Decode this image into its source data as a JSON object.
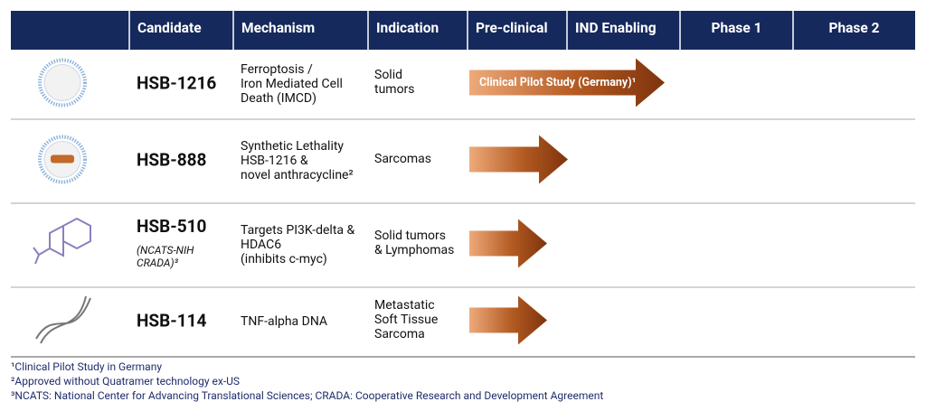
{
  "header": [
    "Candidate",
    "Mechanism",
    "Indication",
    "Pre-clinical",
    "IND Enabling",
    "Phase 1",
    "Phase 2"
  ],
  "rows": [
    {
      "candidate": "HSB-1216",
      "mechanism": [
        "Ferroptosis /",
        "Iron Mediated Cell",
        "Death (IMCD)"
      ],
      "indication": [
        "Solid",
        "tumors"
      ],
      "arrow_label": "Clinical Pilot Study (Germany)¹"
    },
    {
      "candidate": "HSB-888",
      "mechanism": [
        "Synthetic Lethality",
        "HSB-1216 &",
        "novel anthracycline²"
      ],
      "indication": [
        "Sarcomas"
      ]
    },
    {
      "candidate": "HSB-510",
      "note": [
        "(NCATS-NIH",
        "CRADA)³"
      ],
      "mechanism": [
        "Targets PI3K-delta &",
        "HDAC6",
        "(inhibits c-myc)"
      ],
      "indication": [
        "Solid tumors",
        "& Lymphomas"
      ]
    },
    {
      "candidate": "HSB-114",
      "mechanism": [
        "TNF-alpha DNA"
      ],
      "indication": [
        "Metastatic",
        "Soft Tissue",
        "Sarcoma"
      ]
    }
  ],
  "footnotes": [
    "¹Clinical Pilot Study in Germany",
    "²Approved without Quatramer technology ex-US",
    "³NCATS: National Center for Advancing Translational Sciences; CRADA: Cooperative Research and Development Agreement"
  ]
}
